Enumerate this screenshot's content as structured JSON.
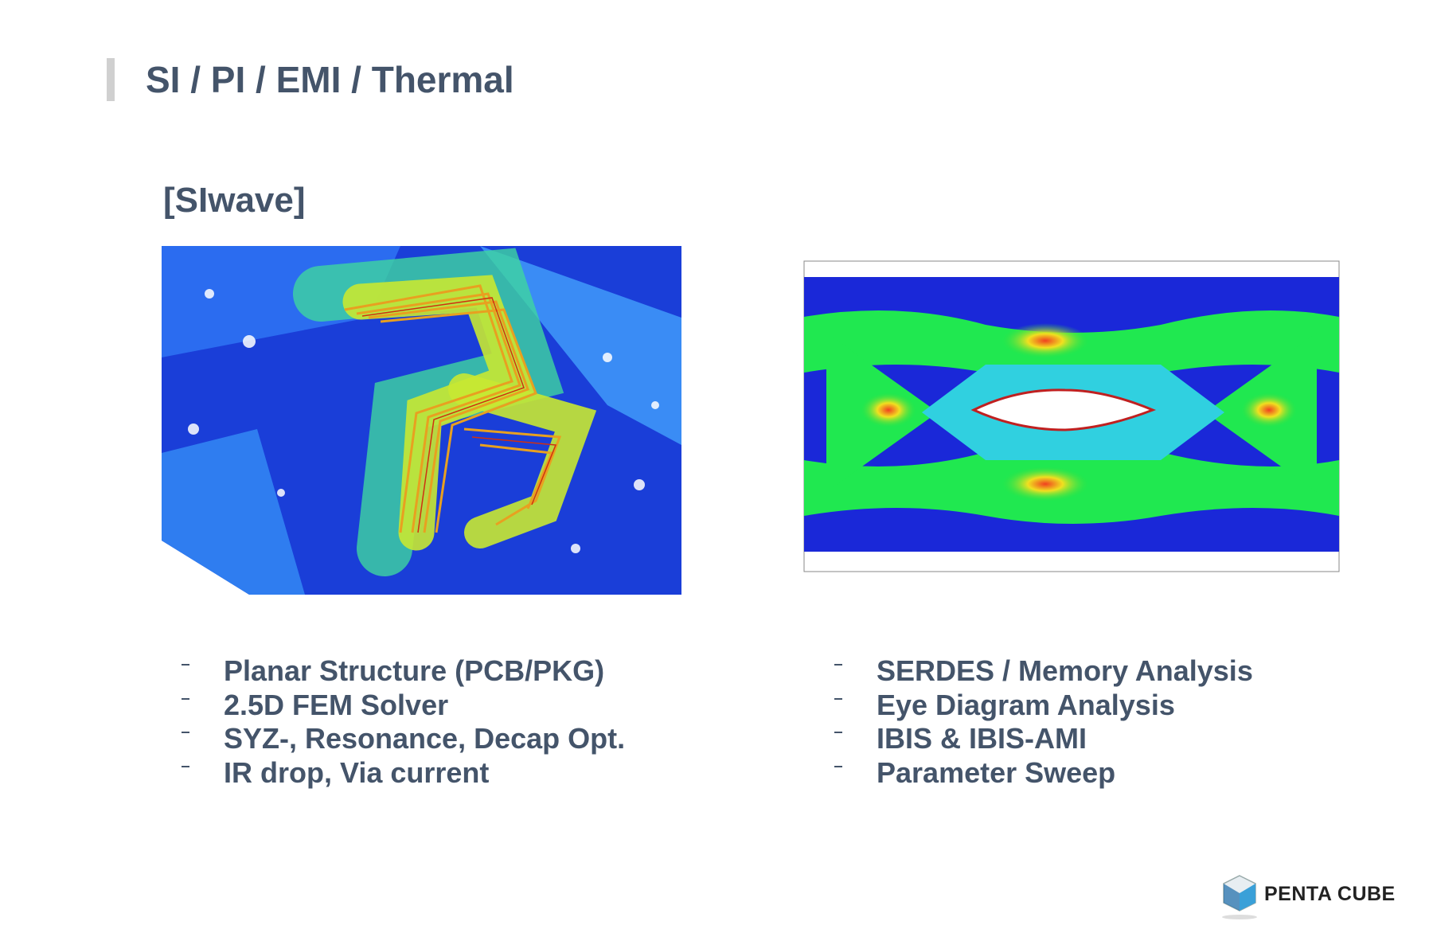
{
  "header": {
    "title": "SI / PI / EMI / Thermal"
  },
  "section": {
    "title": "[SIwave]"
  },
  "left_list": {
    "items": [
      "Planar Structure (PCB/PKG)",
      "2.5D FEM Solver",
      "SYZ-, Resonance, Decap Opt.",
      "IR drop, Via current"
    ]
  },
  "right_list": {
    "items": [
      "SERDES / Memory Analysis",
      "Eye Diagram Analysis",
      "IBIS & IBIS-AMI",
      "Parameter Sweep"
    ]
  },
  "logo": {
    "text": "PENTA CUBE"
  }
}
